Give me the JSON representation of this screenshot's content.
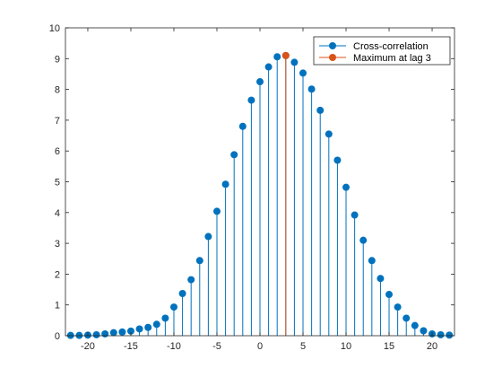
{
  "chart_data": {
    "type": "stem",
    "xlim": [
      -22.6,
      22.6
    ],
    "ylim": [
      0,
      10
    ],
    "x_ticks": [
      -20,
      -15,
      -10,
      -5,
      0,
      5,
      10,
      15,
      20
    ],
    "y_ticks": [
      0,
      1,
      2,
      3,
      4,
      5,
      6,
      7,
      8,
      9,
      10
    ],
    "grid": false,
    "legend_position": "top-right",
    "series": [
      {
        "name": "Cross-correlation",
        "color": "#0072BD",
        "x": [
          -22,
          -21,
          -20,
          -19,
          -18,
          -17,
          -16,
          -15,
          -14,
          -13,
          -12,
          -11,
          -10,
          -9,
          -8,
          -7,
          -6,
          -5,
          -4,
          -3,
          -2,
          -1,
          0,
          1,
          2,
          3,
          4,
          5,
          6,
          7,
          8,
          9,
          10,
          11,
          12,
          13,
          14,
          15,
          16,
          17,
          18,
          19,
          20,
          21,
          22
        ],
        "y": [
          0.01,
          0.01,
          0.02,
          0.03,
          0.06,
          0.1,
          0.12,
          0.15,
          0.22,
          0.27,
          0.37,
          0.57,
          0.93,
          1.37,
          1.82,
          2.44,
          3.22,
          4.04,
          4.92,
          5.88,
          6.8,
          7.65,
          8.25,
          8.73,
          9.06,
          9.1,
          8.88,
          8.53,
          8.01,
          7.32,
          6.55,
          5.7,
          4.82,
          3.92,
          3.1,
          2.44,
          1.86,
          1.34,
          0.93,
          0.57,
          0.33,
          0.16,
          0.06,
          0.03,
          0.02
        ]
      },
      {
        "name": "Maximum at lag 3",
        "color": "#D95319",
        "x": [
          3
        ],
        "y": [
          9.1
        ]
      }
    ]
  }
}
